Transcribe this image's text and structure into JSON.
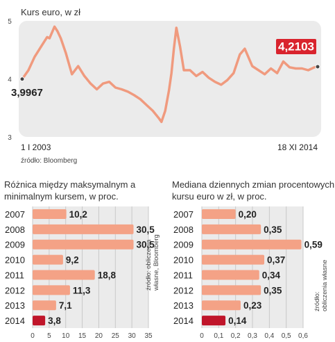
{
  "main_title": "Kurs euro, w zł",
  "main_source": "źródło: Bloomberg",
  "left_source": [
    "źródło: obliczenia",
    "własne, Bloomberg"
  ],
  "right_source": [
    "źródło:",
    "obliczenia własne"
  ],
  "colors": {
    "line": "#f09a7e",
    "plot_bg": "#ebebeb",
    "bar": "#f4a286",
    "highlight_bar": "#c0152a",
    "highlight_label_bg": "#d9232d"
  },
  "chart_data": [
    {
      "type": "line",
      "title": "Kurs euro, w zł",
      "x_range_labels": [
        "1 I 2003",
        "18 XI 2014"
      ],
      "ylim": [
        3,
        5
      ],
      "yticks": [
        "3",
        "4",
        "5"
      ],
      "annotations": [
        {
          "label": "3,9967",
          "x": 2003.0,
          "y": 3.9967
        },
        {
          "label": "4,2103",
          "x": 2014.88,
          "y": 4.2103,
          "highlight": true
        }
      ],
      "x": [
        2003.0,
        2003.25,
        2003.5,
        2003.75,
        2004.0,
        2004.1,
        2004.2,
        2004.3,
        2004.42,
        2004.55,
        2004.75,
        2005.0,
        2005.25,
        2005.5,
        2005.75,
        2006.0,
        2006.25,
        2006.5,
        2006.75,
        2007.0,
        2007.25,
        2007.5,
        2007.75,
        2008.0,
        2008.25,
        2008.5,
        2008.6,
        2008.75,
        2008.9,
        2009.0,
        2009.1,
        2009.2,
        2009.35,
        2009.5,
        2009.75,
        2010.0,
        2010.25,
        2010.5,
        2010.75,
        2011.0,
        2011.25,
        2011.5,
        2011.75,
        2011.95,
        2012.25,
        2012.5,
        2012.75,
        2013.0,
        2013.25,
        2013.5,
        2013.75,
        2014.0,
        2014.25,
        2014.5,
        2014.75,
        2014.88
      ],
      "y": [
        3.9967,
        4.15,
        4.38,
        4.55,
        4.72,
        4.7,
        4.8,
        4.9,
        4.82,
        4.7,
        4.45,
        4.08,
        4.22,
        4.05,
        3.92,
        3.82,
        3.92,
        3.95,
        3.85,
        3.82,
        3.78,
        3.72,
        3.65,
        3.55,
        3.45,
        3.32,
        3.26,
        3.45,
        3.8,
        4.1,
        4.52,
        4.88,
        4.55,
        4.15,
        4.15,
        4.05,
        4.12,
        4.02,
        3.95,
        3.9,
        3.98,
        4.1,
        4.42,
        4.52,
        4.22,
        4.15,
        4.08,
        4.18,
        4.1,
        4.3,
        4.2,
        4.18,
        4.18,
        4.15,
        4.2,
        4.2103
      ]
    },
    {
      "type": "bar",
      "title": "Różnica między maksymalnym a minimalnym kursem, w proc.",
      "categories": [
        "2007",
        "2008",
        "2009",
        "2010",
        "2011",
        "2012",
        "2013",
        "2014"
      ],
      "values": [
        10.2,
        30.5,
        30.5,
        9.2,
        18.8,
        11.3,
        7.1,
        3.8
      ],
      "value_labels": [
        "10,2",
        "30,5",
        "30,5",
        "9,2",
        "18,8",
        "11,3",
        "7,1",
        "3,8"
      ],
      "xlim": [
        0,
        35
      ],
      "xticks": [
        "0",
        "5",
        "10",
        "15",
        "20",
        "25",
        "30",
        "35"
      ],
      "highlight": "2014"
    },
    {
      "type": "bar",
      "title": "Mediana dziennych zmian procentowych kursu euro w zł, w proc.",
      "categories": [
        "2007",
        "2008",
        "2009",
        "2010",
        "2011",
        "2012",
        "2013",
        "2014"
      ],
      "values": [
        0.2,
        0.35,
        0.59,
        0.37,
        0.34,
        0.35,
        0.23,
        0.14
      ],
      "value_labels": [
        "0,20",
        "0,35",
        "0,59",
        "0,37",
        "0,34",
        "0,35",
        "0,23",
        "0,14"
      ],
      "xlim": [
        0,
        0.6
      ],
      "xticks": [
        "0",
        "0,1",
        "0,2",
        "0,3",
        "0,4",
        "0,5",
        "0,6"
      ],
      "highlight": "2014"
    }
  ]
}
